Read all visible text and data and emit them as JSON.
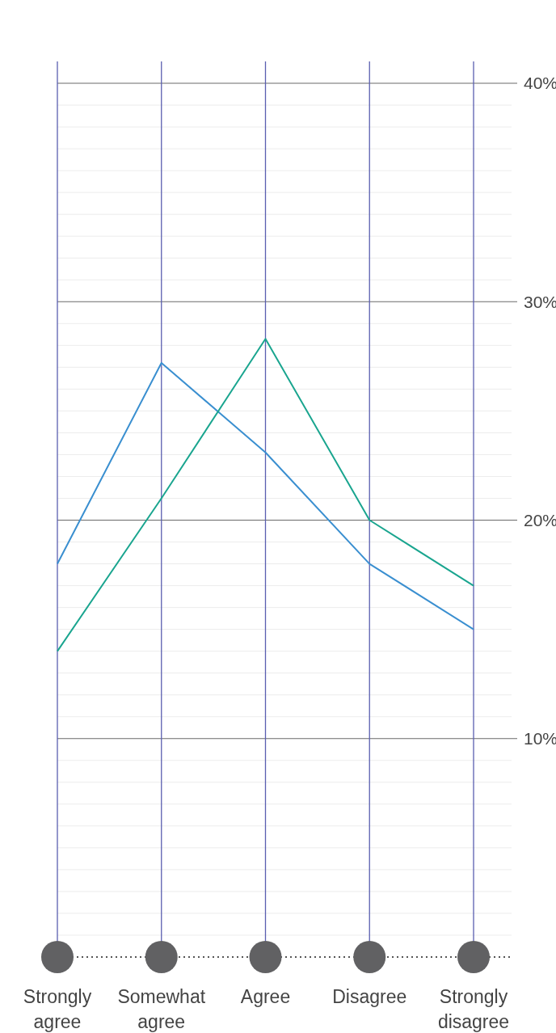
{
  "chart_data": {
    "type": "line",
    "categories": [
      "Strongly\nagree",
      "Somewhat\nagree",
      "Agree",
      "Disagree",
      "Strongly\ndisagree"
    ],
    "series": [
      {
        "color": "#3a8fd0",
        "values": [
          18,
          27.2,
          23.1,
          18,
          15
        ]
      },
      {
        "color": "#1aa58f",
        "values": [
          14,
          21,
          28.3,
          20,
          17
        ]
      }
    ],
    "ylim": [
      0,
      41
    ],
    "yticks": [
      {
        "value": 1,
        "label": null
      },
      {
        "value": 2,
        "label": null
      },
      {
        "value": 3,
        "label": null
      },
      {
        "value": 4,
        "label": null
      },
      {
        "value": 5,
        "label": null
      },
      {
        "value": 6,
        "label": null
      },
      {
        "value": 7,
        "label": null
      },
      {
        "value": 8,
        "label": null
      },
      {
        "value": 9,
        "label": null
      },
      {
        "value": 10,
        "label": "10%"
      },
      {
        "value": 11,
        "label": null
      },
      {
        "value": 12,
        "label": null
      },
      {
        "value": 13,
        "label": null
      },
      {
        "value": 14,
        "label": null
      },
      {
        "value": 15,
        "label": null
      },
      {
        "value": 16,
        "label": null
      },
      {
        "value": 17,
        "label": null
      },
      {
        "value": 18,
        "label": null
      },
      {
        "value": 19,
        "label": null
      },
      {
        "value": 20,
        "label": "20%"
      },
      {
        "value": 21,
        "label": null
      },
      {
        "value": 22,
        "label": null
      },
      {
        "value": 23,
        "label": null
      },
      {
        "value": 24,
        "label": null
      },
      {
        "value": 25,
        "label": null
      },
      {
        "value": 26,
        "label": null
      },
      {
        "value": 27,
        "label": null
      },
      {
        "value": 28,
        "label": null
      },
      {
        "value": 29,
        "label": null
      },
      {
        "value": 30,
        "label": "30%"
      },
      {
        "value": 31,
        "label": null
      },
      {
        "value": 32,
        "label": null
      },
      {
        "value": 33,
        "label": null
      },
      {
        "value": 34,
        "label": null
      },
      {
        "value": 35,
        "label": null
      },
      {
        "value": 36,
        "label": null
      },
      {
        "value": 37,
        "label": null
      },
      {
        "value": 38,
        "label": null
      },
      {
        "value": 39,
        "label": null
      },
      {
        "value": 40,
        "label": "40%"
      }
    ],
    "grid": true,
    "marker": "none",
    "line_style": "solid"
  }
}
